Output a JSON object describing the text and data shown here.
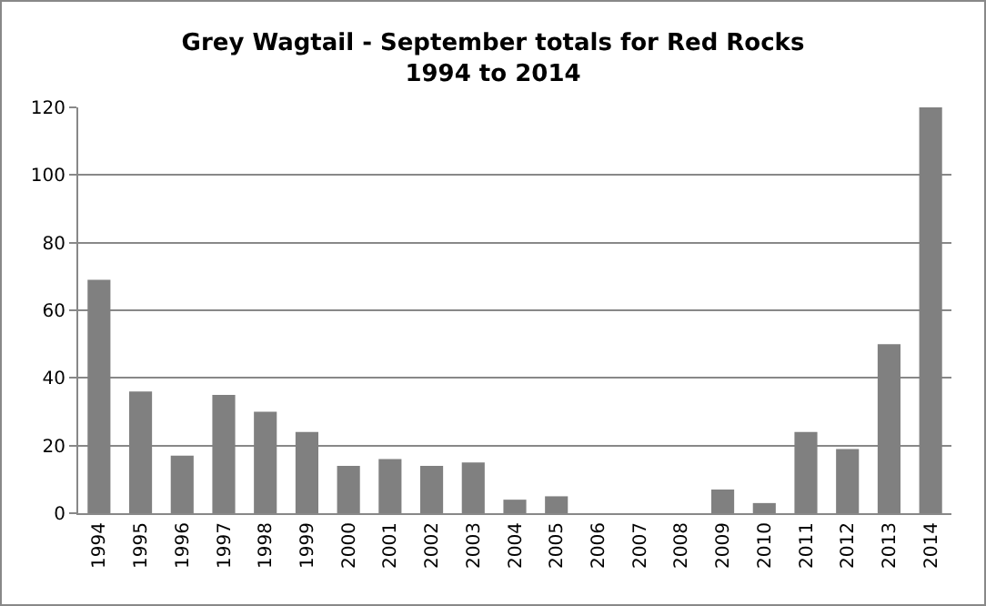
{
  "chart_data": {
    "type": "bar",
    "title": "Grey Wagtail - September totals for Red Rocks\n1994 to 2014",
    "categories": [
      "1994",
      "1995",
      "1996",
      "1997",
      "1998",
      "1999",
      "2000",
      "2001",
      "2002",
      "2003",
      "2004",
      "2005",
      "2006",
      "2007",
      "2008",
      "2009",
      "2010",
      "2011",
      "2012",
      "2013",
      "2014"
    ],
    "values": [
      69,
      36,
      17,
      35,
      30,
      24,
      14,
      16,
      14,
      15,
      4,
      5,
      0,
      0,
      0,
      7,
      3,
      24,
      19,
      50,
      120
    ],
    "color": "#808080",
    "ylim": [
      0,
      120
    ],
    "yticks": [
      0,
      20,
      40,
      60,
      80,
      100,
      120
    ],
    "grid": "y"
  }
}
